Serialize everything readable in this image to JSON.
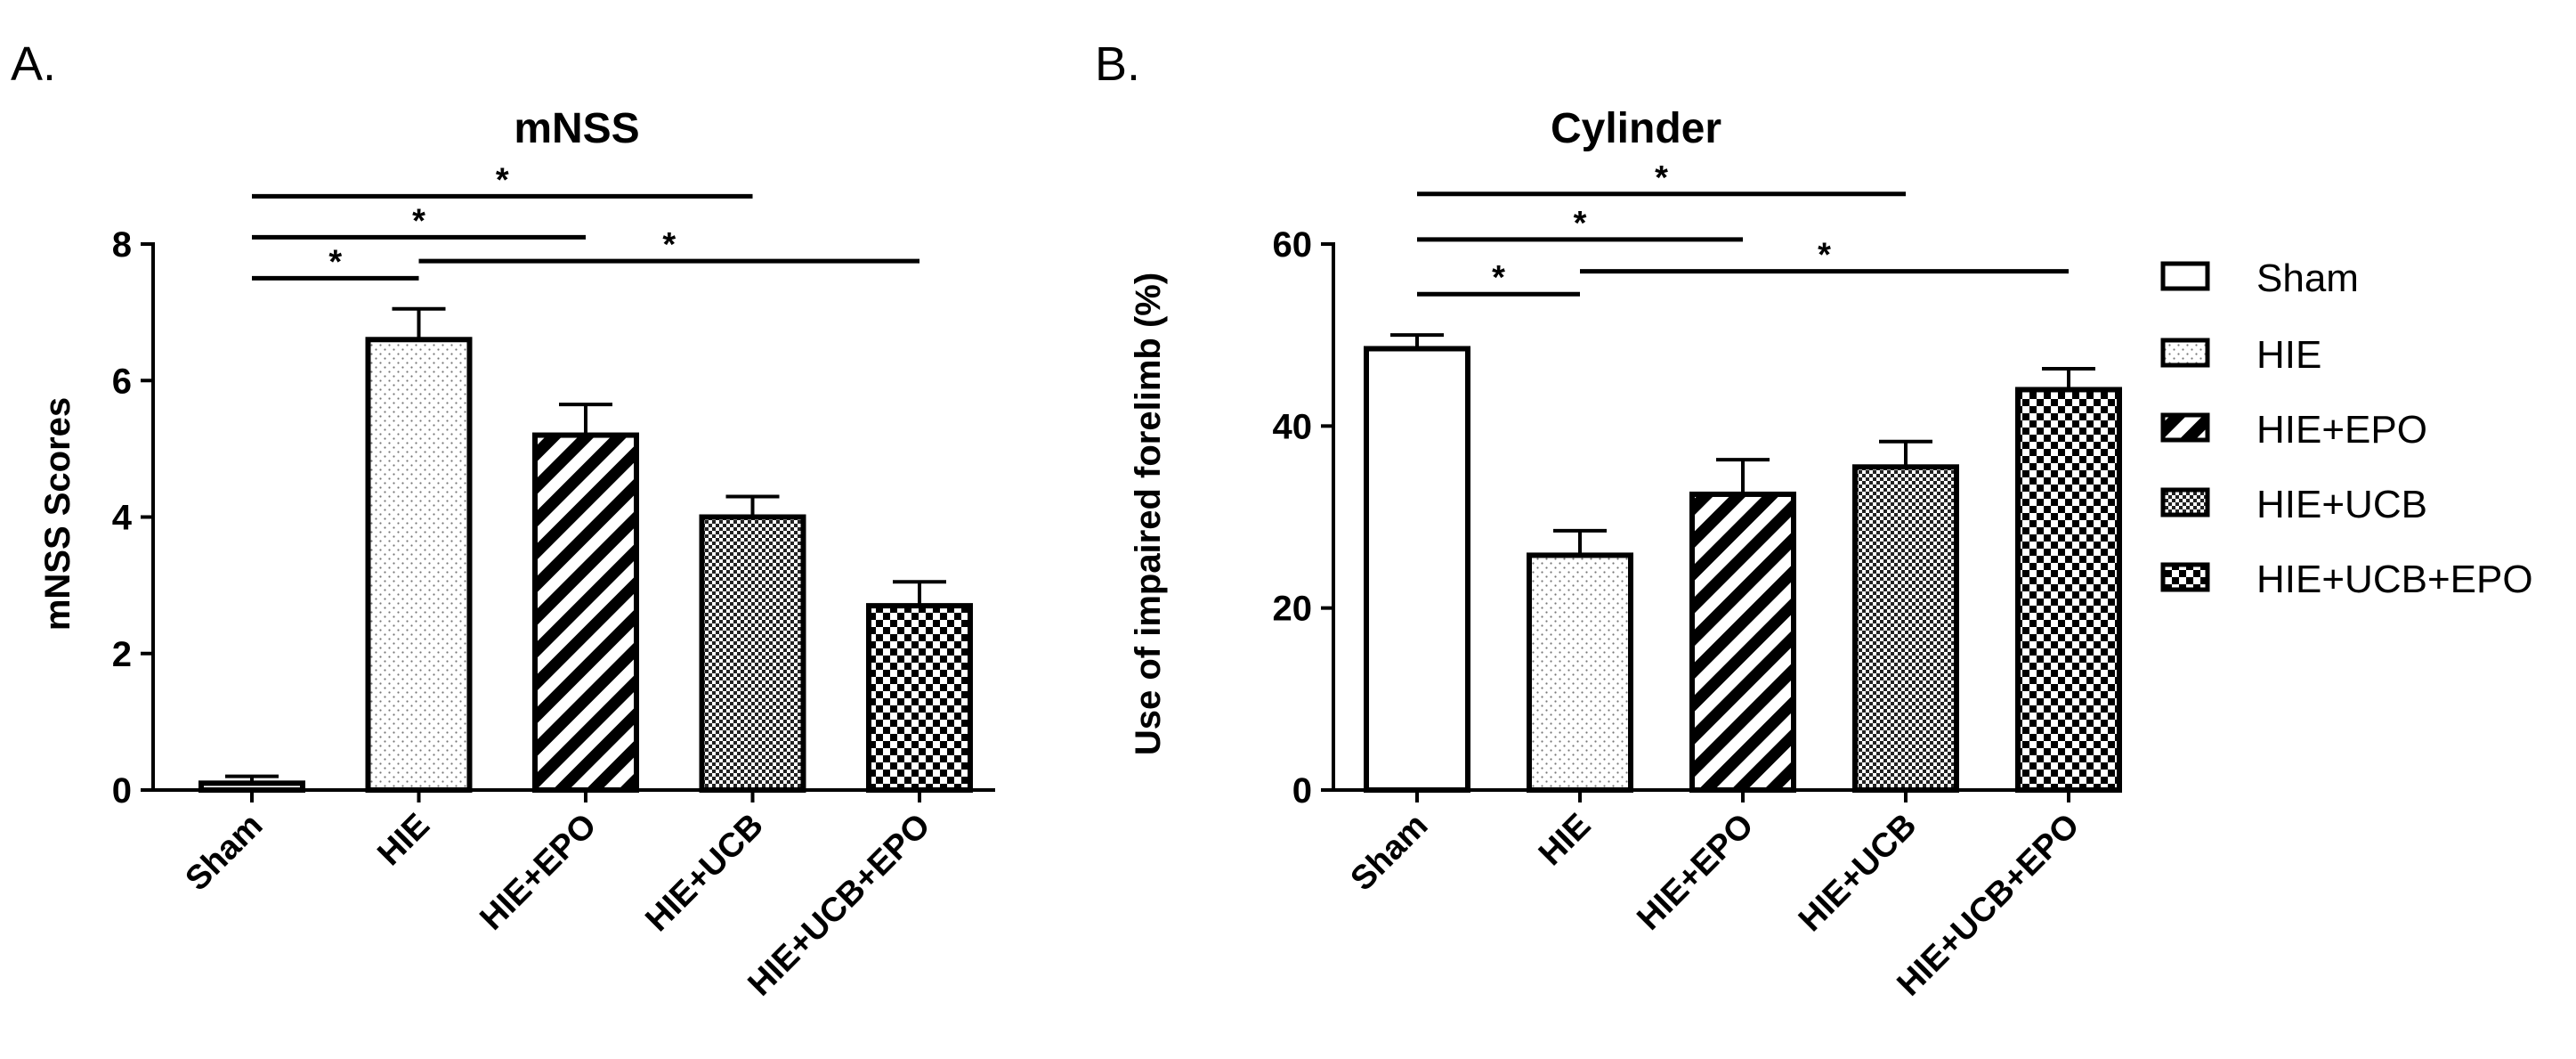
{
  "figure": {
    "groups": [
      "Sham",
      "HIE",
      "HIE+EPO",
      "HIE+UCB",
      "HIE+UCB+EPO"
    ],
    "fills": [
      "solid",
      "dots",
      "stripes",
      "fine-check",
      "check"
    ]
  },
  "panels": [
    {
      "letter": "A.",
      "chart_title": "mNSS",
      "ylabel": "mNSS Scores",
      "yticks": [
        "0",
        "2",
        "4",
        "6",
        "8"
      ]
    },
    {
      "letter": "B.",
      "chart_title": "Cylinder",
      "ylabel": "Use of impaired forelimb (%)",
      "yticks": [
        "0",
        "20",
        "40",
        "60"
      ]
    }
  ],
  "legend": {
    "items": [
      "Sham",
      "HIE",
      "HIE+EPO",
      "HIE+UCB",
      "HIE+UCB+EPO"
    ]
  },
  "chart_data": [
    {
      "type": "bar",
      "title": "mNSS",
      "xlabel": "",
      "ylabel": "mNSS Scores",
      "categories": [
        "Sham",
        "HIE",
        "HIE+EPO",
        "HIE+UCB",
        "HIE+UCB+EPO"
      ],
      "values": [
        0.1,
        6.6,
        5.2,
        4.0,
        2.7
      ],
      "errors": [
        0.1,
        0.45,
        0.45,
        0.3,
        0.35
      ],
      "ylim": [
        0,
        8
      ],
      "yticks": [
        0,
        2,
        4,
        6,
        8
      ],
      "significance": [
        {
          "from": 0,
          "to": 1,
          "level": 7.5,
          "label": "*"
        },
        {
          "from": 0,
          "to": 2,
          "level": 8.1,
          "label": "*"
        },
        {
          "from": 0,
          "to": 3,
          "level": 8.7,
          "label": "*"
        },
        {
          "from": 1,
          "to": 4,
          "level": 7.75,
          "label": "*"
        }
      ]
    },
    {
      "type": "bar",
      "title": "Cylinder",
      "xlabel": "",
      "ylabel": "Use of impaired forelimb (%)",
      "categories": [
        "Sham",
        "HIE",
        "HIE+EPO",
        "HIE+UCB",
        "HIE+UCB+EPO"
      ],
      "values": [
        48.5,
        25.8,
        32.5,
        35.5,
        44.0
      ],
      "errors": [
        1.5,
        2.7,
        3.8,
        2.8,
        2.3
      ],
      "ylim": [
        0,
        60
      ],
      "yticks": [
        0,
        20,
        40,
        60
      ],
      "significance": [
        {
          "from": 0,
          "to": 1,
          "level": 54.5,
          "label": "*"
        },
        {
          "from": 0,
          "to": 2,
          "level": 60.5,
          "label": "*"
        },
        {
          "from": 0,
          "to": 3,
          "level": 65.5,
          "label": "*"
        },
        {
          "from": 1,
          "to": 4,
          "level": 57.0,
          "label": "*"
        }
      ]
    }
  ]
}
